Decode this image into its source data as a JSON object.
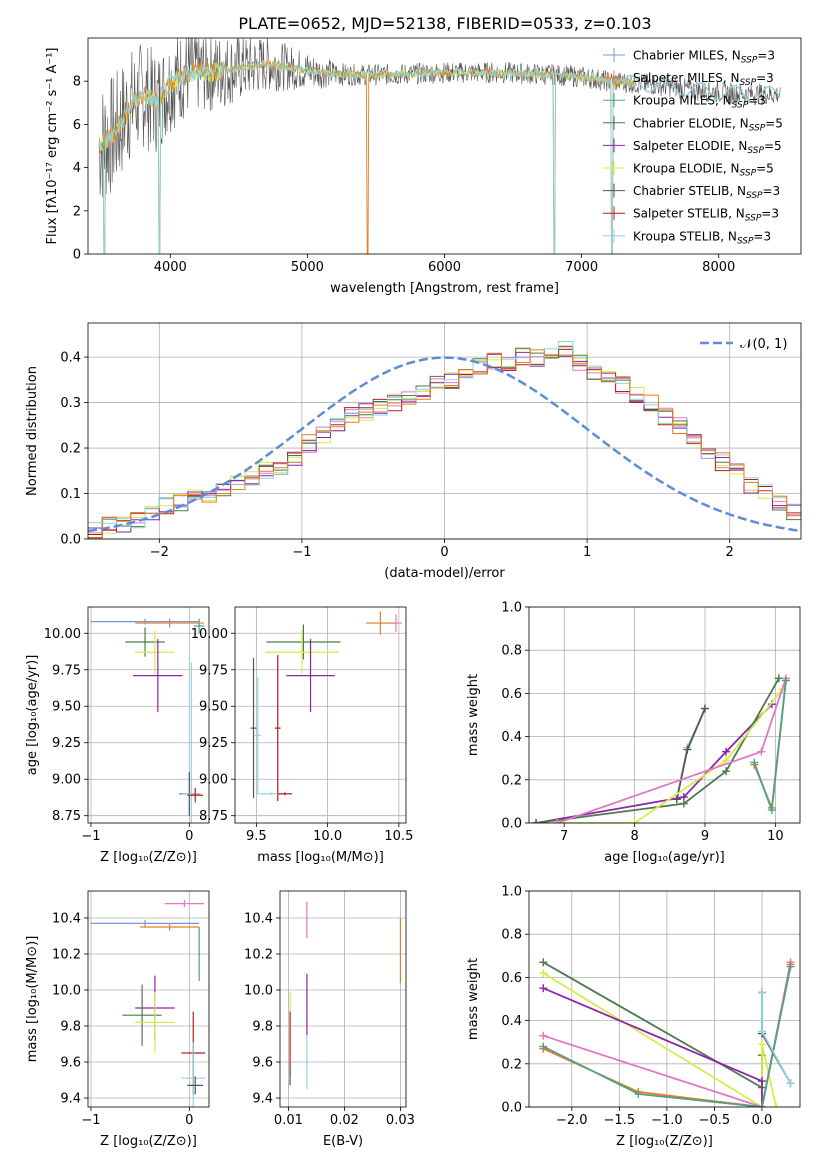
{
  "figure_title": "PLATE=0652, MJD=52138, FIBERID=0533, z=0.103",
  "colors": {
    "chabrier_miles": "#7e93e0",
    "salpeter_miles": "#e67e22",
    "kroupa_miles": "#4fa08a",
    "chabrier_elodie": "#4a7a4a",
    "salpeter_elodie": "#8e24aa",
    "kroupa_elodie": "#d4ed4a",
    "chabrier_stelib": "#555555",
    "salpeter_stelib": "#b71c1c",
    "kroupa_stelib": "#8fd3e0",
    "normal_curve": "#5b8ed6",
    "hist_pink": "#e377c2"
  },
  "chart_data": [
    {
      "id": "spectrum",
      "type": "line",
      "title": "PLATE=0652, MJD=52138, FIBERID=0533, z=0.103",
      "xlabel": "wavelength [Angstrom, rest frame]",
      "ylabel": "Flux [fλ10⁻¹⁷ erg cm⁻² s⁻¹ A⁻¹]",
      "xlim": [
        3400,
        8600
      ],
      "ylim": [
        0,
        10
      ],
      "xticks": [
        4000,
        5000,
        6000,
        7000,
        8000
      ],
      "yticks": [
        0,
        2,
        4,
        6,
        8
      ],
      "legend_position": "top-right",
      "legend": [
        {
          "key": "chabrier_miles",
          "name": "Chabrier MILES, N",
          "sub": "SSP",
          "suffix": "=3"
        },
        {
          "key": "salpeter_miles",
          "name": "Salpeter MILES, N",
          "sub": "SSP",
          "suffix": "=3"
        },
        {
          "key": "kroupa_miles",
          "name": "Kroupa MILES, N",
          "sub": "SSP",
          "suffix": "=3"
        },
        {
          "key": "chabrier_elodie",
          "name": "Chabrier ELODIE, N",
          "sub": "SSP",
          "suffix": "=5"
        },
        {
          "key": "salpeter_elodie",
          "name": "Salpeter ELODIE, N",
          "sub": "SSP",
          "suffix": "=5"
        },
        {
          "key": "kroupa_elodie",
          "name": "Kroupa ELODIE, N",
          "sub": "SSP",
          "suffix": "=5"
        },
        {
          "key": "chabrier_stelib",
          "name": "Chabrier STELIB, N",
          "sub": "SSP",
          "suffix": "=3"
        },
        {
          "key": "salpeter_stelib",
          "name": "Salpeter STELIB, N",
          "sub": "SSP",
          "suffix": "=3"
        },
        {
          "key": "kroupa_stelib",
          "name": "Kroupa STELIB, N",
          "sub": "SSP",
          "suffix": "=3"
        }
      ],
      "model_envelope": {
        "x": [
          3480,
          3600,
          3700,
          3800,
          3900,
          4000,
          4100,
          4200,
          4300,
          4500,
          4700,
          4900,
          5100,
          5300,
          5600,
          6000,
          6400,
          6800,
          7000,
          7200,
          7400,
          7600,
          7800,
          8000,
          8200
        ],
        "y": [
          5.0,
          5.6,
          6.8,
          7.4,
          7.0,
          7.9,
          8.3,
          8.5,
          8.4,
          8.6,
          8.8,
          8.6,
          8.4,
          8.3,
          8.3,
          8.4,
          8.4,
          8.3,
          8.2,
          8.0,
          7.9,
          7.8,
          7.6,
          7.5,
          7.4
        ]
      },
      "model_extension_x": [
        7400,
        7800,
        8200,
        8450
      ],
      "dips_x": [
        3520,
        3920,
        5440,
        6800,
        7220
      ],
      "data_noise": {
        "x_start": 3480,
        "x_end": 8450,
        "noise_blue": 3.0,
        "noise_red": 0.5
      }
    },
    {
      "id": "residuals",
      "type": "bar",
      "xlabel": "(data-model)/error",
      "ylabel": "Normed distribution",
      "xlim": [
        -2.5,
        2.5
      ],
      "ylim": [
        0,
        0.475
      ],
      "xticks": [
        -2,
        -1,
        0,
        1,
        2
      ],
      "yticks": [
        0.0,
        0.1,
        0.2,
        0.3,
        0.4
      ],
      "legend": "𝒩(0, 1)",
      "bin_width": 0.1,
      "series_values": [
        0.02,
        0.03,
        0.03,
        0.04,
        0.06,
        0.07,
        0.08,
        0.09,
        0.1,
        0.11,
        0.12,
        0.13,
        0.15,
        0.16,
        0.18,
        0.21,
        0.23,
        0.25,
        0.27,
        0.28,
        0.29,
        0.3,
        0.31,
        0.32,
        0.34,
        0.35,
        0.37,
        0.38,
        0.39,
        0.39,
        0.4,
        0.4,
        0.41,
        0.42,
        0.39,
        0.37,
        0.36,
        0.34,
        0.32,
        0.3,
        0.27,
        0.25,
        0.22,
        0.19,
        0.17,
        0.15,
        0.12,
        0.1,
        0.08,
        0.06,
        0.05
      ]
    },
    {
      "id": "age_vs_z",
      "type": "scatter",
      "xlabel": "Z [log₁₀(Z/Z⊙)]",
      "ylabel": "age  [log₁₀(age/yr)]",
      "xlim": [
        -1.03,
        0.2
      ],
      "ylim": [
        8.7,
        10.18
      ],
      "xticks": [
        -1,
        0
      ],
      "yticks": [
        8.75,
        9.0,
        9.25,
        9.5,
        9.75,
        10.0
      ],
      "points": [
        {
          "key": "chabrier_miles",
          "x": -0.45,
          "y": 10.08,
          "xerr": 0.55,
          "yerr": 0.02
        },
        {
          "key": "salpeter_miles",
          "x": -0.2,
          "y": 10.07,
          "xerr": 0.35,
          "yerr": 0.03
        },
        {
          "key": "kroupa_miles",
          "x": 0.1,
          "y": 10.05,
          "xerr": 0.05,
          "yerr": 0.05
        },
        {
          "key": "chabrier_elodie",
          "x": -0.45,
          "y": 9.94,
          "xerr": 0.2,
          "yerr": 0.1
        },
        {
          "key": "kroupa_elodie",
          "x": -0.35,
          "y": 9.87,
          "xerr": 0.2,
          "yerr": 0.15
        },
        {
          "key": "salpeter_elodie",
          "x": -0.32,
          "y": 9.71,
          "xerr": 0.25,
          "yerr": 0.25
        },
        {
          "key": "chabrier_stelib",
          "x": 0.0,
          "y": 8.9,
          "xerr": 0.1,
          "yerr": 0.15
        },
        {
          "key": "kroupa_stelib",
          "x": 0.02,
          "y": 8.9,
          "xerr": 0.1,
          "yerr": 0.9
        },
        {
          "key": "salpeter_stelib",
          "x": 0.06,
          "y": 8.89,
          "xerr": 0.08,
          "yerr": 0.05
        }
      ]
    },
    {
      "id": "age_vs_mass",
      "type": "scatter",
      "xlabel": "mass [log₁₀(M/M⊙)]",
      "ylabel": "",
      "xlim": [
        9.35,
        10.55
      ],
      "ylim": [
        8.7,
        10.18
      ],
      "xticks": [
        9.5,
        10.0,
        10.5
      ],
      "yticks": [
        8.75,
        9.0,
        9.25,
        9.5,
        9.75,
        10.0
      ],
      "points": [
        {
          "key": "hist_pink",
          "x": 10.48,
          "y": 10.07,
          "xerr": 0.04,
          "yerr": 0.06
        },
        {
          "key": "salpeter_miles",
          "x": 10.37,
          "y": 10.07,
          "xerr": 0.1,
          "yerr": 0.08
        },
        {
          "key": "chabrier_elodie",
          "x": 9.83,
          "y": 9.94,
          "xerr": 0.26,
          "yerr": 0.12
        },
        {
          "key": "kroupa_elodie",
          "x": 9.82,
          "y": 9.87,
          "xerr": 0.26,
          "yerr": 0.15
        },
        {
          "key": "salpeter_elodie",
          "x": 9.88,
          "y": 9.71,
          "xerr": 0.17,
          "yerr": 0.25
        },
        {
          "key": "chabrier_stelib",
          "x": 9.48,
          "y": 9.35,
          "xerr": 0.02,
          "yerr": 0.48
        },
        {
          "key": "kroupa_stelib",
          "x": 9.51,
          "y": 9.3,
          "xerr": 0.02,
          "yerr": 0.4
        },
        {
          "key": "salpeter_stelib",
          "x": 9.65,
          "y": 9.35,
          "xerr": 0.02,
          "yerr": 0.5
        },
        {
          "key": "kroupa_stelib",
          "x": 9.6,
          "y": 8.9,
          "xerr": 0.1,
          "yerr": 0.01
        },
        {
          "key": "salpeter_stelib",
          "x": 9.7,
          "y": 8.9,
          "xerr": 0.05,
          "yerr": 0.01
        }
      ]
    },
    {
      "id": "weight_vs_age",
      "type": "line",
      "xlabel": "age  [log₁₀(age/yr)]",
      "ylabel": "mass weight",
      "xlim": [
        6.5,
        10.35
      ],
      "ylim": [
        0,
        1
      ],
      "xticks": [
        7,
        8,
        9,
        10
      ],
      "yticks": [
        0.0,
        0.2,
        0.4,
        0.6,
        0.8,
        1.0
      ],
      "series": [
        {
          "key": "kroupa_stelib",
          "x": [
            8.6,
            8.75,
            9.0
          ],
          "y": [
            0.11,
            0.35,
            0.53
          ]
        },
        {
          "key": "chabrier_stelib",
          "x": [
            8.6,
            8.75,
            9.0
          ],
          "y": [
            0.11,
            0.34,
            0.53
          ]
        },
        {
          "key": "salpeter_elodie",
          "x": [
            6.6,
            8.7,
            9.3,
            9.95
          ],
          "y": [
            0.0,
            0.12,
            0.33,
            0.55
          ]
        },
        {
          "key": "chabrier_elodie",
          "x": [
            6.6,
            8.7,
            9.3,
            10.05
          ],
          "y": [
            0.0,
            0.09,
            0.24,
            0.67
          ]
        },
        {
          "key": "kroupa_elodie",
          "x": [
            6.9,
            8.0,
            9.3,
            10.1
          ],
          "y": [
            0.0,
            0.0,
            0.29,
            0.62
          ]
        },
        {
          "key": "hist_pink",
          "x": [
            6.9,
            9.8,
            10.15
          ],
          "y": [
            0.0,
            0.33,
            0.67
          ]
        },
        {
          "key": "salpeter_miles",
          "x": [
            9.7,
            9.95,
            10.15
          ],
          "y": [
            0.27,
            0.07,
            0.66
          ]
        },
        {
          "key": "kroupa_miles",
          "x": [
            9.7,
            9.95,
            10.15
          ],
          "y": [
            0.28,
            0.06,
            0.66
          ]
        }
      ]
    },
    {
      "id": "mass_vs_z",
      "type": "scatter",
      "xlabel": "Z [log₁₀(Z/Z⊙)]",
      "ylabel": "mass [log₁₀(M/M⊙)]",
      "xlim": [
        -1.03,
        0.2
      ],
      "ylim": [
        9.35,
        10.55
      ],
      "xticks": [
        -1,
        0
      ],
      "yticks": [
        9.4,
        9.6,
        9.8,
        10.0,
        10.2,
        10.4
      ],
      "points": [
        {
          "key": "hist_pink",
          "x": -0.05,
          "y": 10.48,
          "xerr": 0.2,
          "yerr": 0.02
        },
        {
          "key": "chabrier_miles",
          "x": -0.45,
          "y": 10.37,
          "xerr": 0.55,
          "yerr": 0.02
        },
        {
          "key": "salpeter_miles",
          "x": -0.2,
          "y": 10.35,
          "xerr": 0.3,
          "yerr": 0.02
        },
        {
          "key": "kroupa_miles",
          "x": 0.1,
          "y": 10.2,
          "xerr": 0.01,
          "yerr": 0.15
        },
        {
          "key": "salpeter_elodie",
          "x": -0.35,
          "y": 9.9,
          "xerr": 0.2,
          "yerr": 0.18
        },
        {
          "key": "chabrier_elodie",
          "x": -0.48,
          "y": 9.86,
          "xerr": 0.2,
          "yerr": 0.17
        },
        {
          "key": "kroupa_elodie",
          "x": -0.35,
          "y": 9.82,
          "xerr": 0.2,
          "yerr": 0.17
        },
        {
          "key": "salpeter_stelib",
          "x": 0.04,
          "y": 9.65,
          "xerr": 0.12,
          "yerr": 0.23
        },
        {
          "key": "kroupa_stelib",
          "x": 0.04,
          "y": 9.51,
          "xerr": 0.12,
          "yerr": 0.2
        },
        {
          "key": "chabrier_stelib",
          "x": 0.06,
          "y": 9.47,
          "xerr": 0.08,
          "yerr": 0.05
        }
      ]
    },
    {
      "id": "mass_vs_ebv",
      "type": "scatter",
      "xlabel": "E(B-V)",
      "ylabel": "",
      "xlim": [
        0.0085,
        0.031
      ],
      "ylim": [
        9.35,
        10.55
      ],
      "xticks": [
        0.01,
        0.02,
        0.03
      ],
      "yticks": [
        9.4,
        9.6,
        9.8,
        10.0,
        10.2,
        10.4
      ],
      "points": [
        {
          "key": "hist_pink",
          "x": 0.0133,
          "y": 10.39,
          "xerr": 0.0,
          "yerr": 0.1
        },
        {
          "key": "salpeter_miles",
          "x": 0.03,
          "y": 10.22,
          "xerr": 0.0,
          "yerr": 0.18
        },
        {
          "key": "salpeter_elodie",
          "x": 0.0133,
          "y": 9.92,
          "xerr": 0.0,
          "yerr": 0.17
        },
        {
          "key": "kroupa_elodie",
          "x": 0.0103,
          "y": 9.82,
          "xerr": 0.0,
          "yerr": 0.17
        },
        {
          "key": "salpeter_stelib",
          "x": 0.0103,
          "y": 9.7,
          "xerr": 0.0,
          "yerr": 0.18
        },
        {
          "key": "kroupa_stelib",
          "x": 0.0133,
          "y": 9.6,
          "xerr": 0.0,
          "yerr": 0.15
        },
        {
          "key": "chabrier_stelib",
          "x": 0.0103,
          "y": 9.52,
          "xerr": 0.0,
          "yerr": 0.05
        }
      ]
    },
    {
      "id": "weight_vs_z",
      "type": "line",
      "xlabel": "Z [log₁₀(Z/Z⊙)]",
      "ylabel": "mass weight",
      "xlim": [
        -2.45,
        0.4
      ],
      "ylim": [
        0,
        1
      ],
      "xticks": [
        -2.0,
        -1.5,
        -1.0,
        -0.5,
        0.0
      ],
      "yticks": [
        0.0,
        0.2,
        0.4,
        0.6,
        0.8,
        1.0
      ],
      "series": [
        {
          "key": "chabrier_elodie",
          "x": [
            -2.3,
            0.0,
            0.0
          ],
          "y": [
            0.67,
            0.09,
            0.24
          ]
        },
        {
          "key": "kroupa_elodie",
          "x": [
            -2.3,
            0.0,
            0.0,
            0.15
          ],
          "y": [
            0.62,
            0.0,
            0.29,
            0.0
          ]
        },
        {
          "key": "salpeter_elodie",
          "x": [
            -2.3,
            0.0,
            0.0
          ],
          "y": [
            0.55,
            0.12,
            0.0
          ]
        },
        {
          "key": "hist_pink",
          "x": [
            -2.3,
            0.0,
            0.3
          ],
          "y": [
            0.33,
            0.0,
            0.67
          ]
        },
        {
          "key": "salpeter_miles",
          "x": [
            -2.3,
            -1.3,
            0.0,
            0.3
          ],
          "y": [
            0.27,
            0.07,
            0.0,
            0.66
          ]
        },
        {
          "key": "kroupa_miles",
          "x": [
            -2.3,
            -1.3,
            0.0,
            0.3
          ],
          "y": [
            0.28,
            0.06,
            0.0,
            0.65
          ]
        },
        {
          "key": "chabrier_stelib",
          "x": [
            0.0,
            0.0,
            0.3
          ],
          "y": [
            0.53,
            0.34,
            0.11
          ]
        },
        {
          "key": "kroupa_stelib",
          "x": [
            0.0,
            0.0,
            0.3
          ],
          "y": [
            0.53,
            0.35,
            0.11
          ]
        }
      ]
    }
  ]
}
